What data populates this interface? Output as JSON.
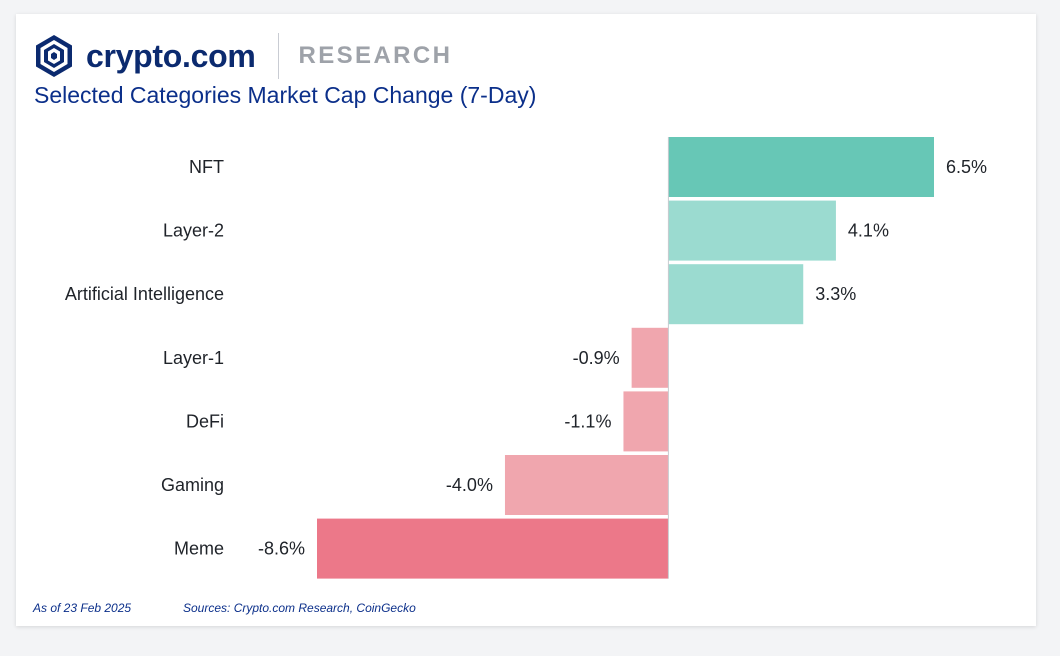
{
  "header": {
    "brand": "crypto.com",
    "section": "RESEARCH",
    "logo_icon": "crypto-com-lion-shield-icon"
  },
  "footer": {
    "date": "As of 23 Feb 2025",
    "sources": "Sources: Crypto.com Research, CoinGecko"
  },
  "colors": {
    "brand_navy": "#0b2a6f",
    "title_blue": "#0b2f8a",
    "positive_strong": "#67c7b6",
    "positive_light": "#9bdbd0",
    "negative_light": "#f0a6ae",
    "negative_strong": "#ec7889"
  },
  "chart_data": {
    "type": "bar",
    "orientation": "horizontal",
    "title": "Selected Categories Market Cap Change (7-Day)",
    "categories": [
      "NFT",
      "Layer-2",
      "Artificial Intelligence",
      "Layer-1",
      "DeFi",
      "Gaming",
      "Meme"
    ],
    "values": [
      6.5,
      4.1,
      3.3,
      -0.9,
      -1.1,
      -4.0,
      -8.6
    ],
    "value_labels": [
      "6.5%",
      "4.1%",
      "3.3%",
      "-0.9%",
      "-1.1%",
      "-4.0%",
      "-8.6%"
    ],
    "bar_colors": [
      "#67c7b6",
      "#9bdbd0",
      "#9bdbd0",
      "#f0a6ae",
      "#f0a6ae",
      "#f0a6ae",
      "#ec7889"
    ],
    "xlim": [
      -8.6,
      6.5
    ],
    "grid": false,
    "legend": false,
    "unit": "%"
  }
}
